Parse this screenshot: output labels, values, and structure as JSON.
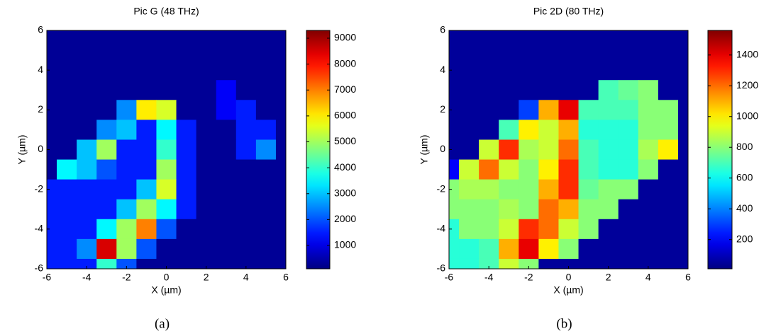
{
  "chart_data": [
    {
      "type": "heatmap",
      "title": "Pic G (48 THz)",
      "xlabel": "X (µm)",
      "ylabel": "Y (µm)",
      "caption": "(a)",
      "colormap": "jet",
      "x": [
        -6,
        -5,
        -4,
        -3,
        -2,
        -1,
        0,
        1,
        2,
        3,
        4,
        5,
        6
      ],
      "y": [
        6,
        5,
        4,
        3,
        2,
        1,
        0,
        -1,
        -2,
        -3,
        -4,
        -5,
        -6
      ],
      "z": [
        [
          300,
          300,
          300,
          300,
          300,
          300,
          300,
          300,
          300,
          300,
          300,
          300,
          300
        ],
        [
          300,
          300,
          300,
          300,
          300,
          300,
          300,
          300,
          300,
          300,
          300,
          300,
          300
        ],
        [
          300,
          300,
          300,
          300,
          300,
          300,
          300,
          300,
          300,
          300,
          300,
          300,
          300
        ],
        [
          300,
          300,
          300,
          300,
          300,
          300,
          300,
          300,
          300,
          1200,
          300,
          300,
          300
        ],
        [
          300,
          300,
          300,
          300,
          2500,
          6000,
          5500,
          300,
          300,
          1200,
          1500,
          300,
          300
        ],
        [
          300,
          300,
          300,
          2500,
          3000,
          1500,
          3500,
          1500,
          300,
          300,
          1500,
          1500,
          300
        ],
        [
          300,
          300,
          3000,
          5000,
          1500,
          1500,
          4000,
          1500,
          300,
          300,
          1500,
          2500,
          300
        ],
        [
          300,
          3500,
          3000,
          2000,
          1500,
          1500,
          5000,
          1500,
          300,
          300,
          300,
          300,
          300
        ],
        [
          1500,
          1500,
          1500,
          1500,
          1500,
          3000,
          5500,
          1500,
          300,
          300,
          300,
          300,
          300
        ],
        [
          1500,
          1500,
          1500,
          1500,
          3000,
          5000,
          3500,
          1500,
          300,
          300,
          300,
          300,
          300
        ],
        [
          1500,
          1500,
          1500,
          3500,
          5000,
          7000,
          2000,
          300,
          300,
          300,
          300,
          300,
          300
        ],
        [
          1500,
          1500,
          2500,
          8500,
          5000,
          2000,
          300,
          300,
          300,
          300,
          300,
          300,
          300
        ],
        [
          1500,
          1500,
          1500,
          4000,
          2000,
          300,
          300,
          300,
          300,
          300,
          300,
          300,
          300
        ]
      ],
      "xlim": [
        -6,
        6
      ],
      "ylim": [
        -6,
        6
      ],
      "xticks": [
        -6,
        -4,
        -2,
        0,
        2,
        4,
        6
      ],
      "yticks": [
        -6,
        -4,
        -2,
        0,
        2,
        4,
        6
      ],
      "clim": [
        100,
        9300
      ],
      "cticks": [
        1000,
        2000,
        3000,
        4000,
        5000,
        6000,
        7000,
        8000,
        9000
      ]
    },
    {
      "type": "heatmap",
      "title": "Pic 2D (80 THz)",
      "xlabel": "X (µm)",
      "ylabel": "Y (µm)",
      "caption": "(b)",
      "colormap": "jet",
      "x": [
        -6,
        -5,
        -4,
        -3,
        -2,
        -1,
        0,
        1,
        2,
        3,
        4,
        5,
        6
      ],
      "y": [
        6,
        5,
        4,
        3,
        2,
        1,
        0,
        -1,
        -2,
        -3,
        -4,
        -5,
        -6
      ],
      "z": [
        [
          50,
          50,
          50,
          50,
          50,
          50,
          50,
          50,
          50,
          50,
          50,
          50,
          50
        ],
        [
          50,
          50,
          50,
          50,
          50,
          50,
          50,
          50,
          50,
          50,
          50,
          50,
          50
        ],
        [
          50,
          50,
          50,
          50,
          50,
          50,
          50,
          50,
          50,
          50,
          50,
          50,
          50
        ],
        [
          50,
          50,
          50,
          50,
          50,
          50,
          50,
          50,
          700,
          750,
          800,
          50,
          50
        ],
        [
          50,
          50,
          50,
          50,
          300,
          1100,
          1400,
          700,
          700,
          700,
          800,
          800,
          50
        ],
        [
          50,
          50,
          50,
          700,
          1000,
          900,
          1100,
          650,
          650,
          650,
          800,
          800,
          50
        ],
        [
          50,
          50,
          900,
          1300,
          850,
          900,
          1200,
          700,
          650,
          650,
          850,
          1000,
          50
        ],
        [
          200,
          900,
          1200,
          900,
          800,
          1000,
          1300,
          700,
          650,
          650,
          800,
          50,
          50
        ],
        [
          800,
          850,
          850,
          800,
          800,
          1100,
          1300,
          750,
          800,
          800,
          50,
          50,
          50
        ],
        [
          800,
          800,
          800,
          850,
          800,
          1200,
          1100,
          800,
          800,
          50,
          50,
          50,
          50
        ],
        [
          650,
          800,
          800,
          900,
          1300,
          1200,
          900,
          800,
          50,
          50,
          50,
          50,
          50
        ],
        [
          650,
          650,
          700,
          1100,
          1400,
          1000,
          800,
          50,
          50,
          50,
          50,
          50,
          50
        ],
        [
          650,
          650,
          700,
          900,
          800,
          50,
          50,
          50,
          50,
          50,
          50,
          50,
          50
        ]
      ],
      "xlim": [
        -6,
        6
      ],
      "ylim": [
        -6,
        6
      ],
      "xticks": [
        -6,
        -4,
        -2,
        0,
        2,
        4,
        6
      ],
      "yticks": [
        -6,
        -4,
        -2,
        0,
        2,
        4,
        6
      ],
      "clim": [
        10,
        1560
      ],
      "cticks": [
        200,
        400,
        600,
        800,
        1000,
        1200,
        1400
      ]
    }
  ]
}
